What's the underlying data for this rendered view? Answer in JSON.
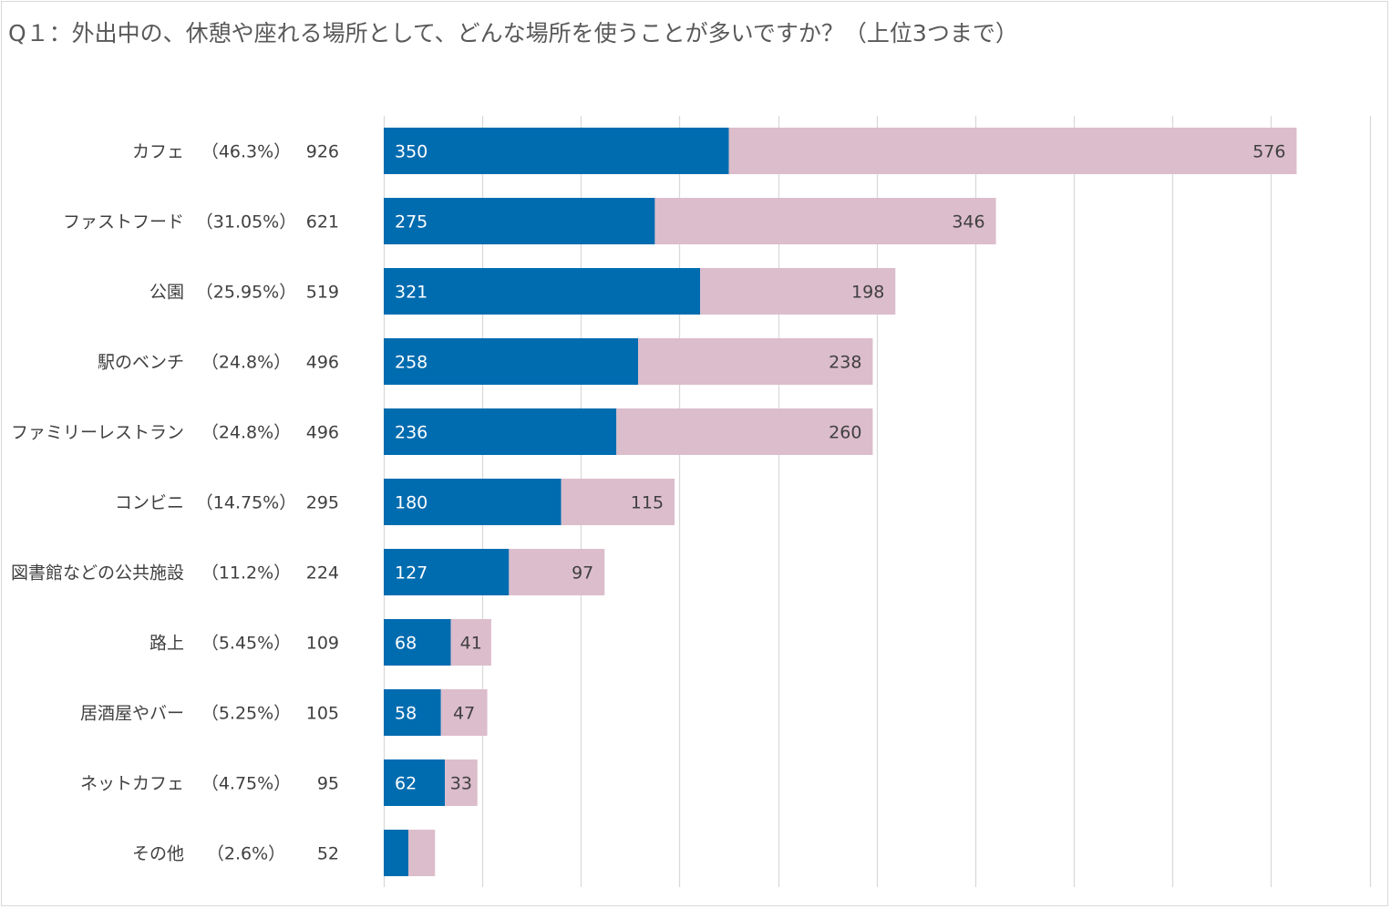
{
  "chart_data": {
    "type": "bar",
    "orientation": "horizontal",
    "stacked": true,
    "title": "Q１：外出中の、休憩や座れる場所として、どんな場所を使うことが多いですか？（上位3つまで）",
    "categories": [
      "カフェ",
      "ファストフード",
      "公園",
      "駅のベンチ",
      "ファミリーレストラン",
      "コンビニ",
      "図書館などの公共施設",
      "路上",
      "居酒屋やバー",
      "ネットカフェ",
      "その他"
    ],
    "percent_labels": [
      "（46.3%）",
      "（31.05%）",
      "（25.95%）",
      "（24.8%）",
      "（24.8%）",
      "（14.75%）",
      "（11.2%）",
      "（5.45%）",
      "（5.25%）",
      "（4.75%）",
      "（2.6%）"
    ],
    "totals": [
      926,
      621,
      519,
      496,
      496,
      295,
      224,
      109,
      105,
      95,
      52
    ],
    "series": [
      {
        "name": "series-1",
        "color": "#006cb0",
        "values": [
          350,
          275,
          321,
          258,
          236,
          180,
          127,
          68,
          58,
          62,
          25
        ],
        "show_labels": [
          true,
          true,
          true,
          true,
          true,
          true,
          true,
          true,
          true,
          true,
          false
        ]
      },
      {
        "name": "series-2",
        "color": "#dcbdcb",
        "values": [
          576,
          346,
          198,
          238,
          260,
          115,
          97,
          41,
          47,
          33,
          27
        ],
        "show_labels": [
          true,
          true,
          true,
          true,
          true,
          true,
          true,
          true,
          true,
          true,
          false
        ]
      }
    ],
    "xlim": [
      0,
      1000
    ],
    "grid_step": 100,
    "grid": true,
    "legend": "none"
  }
}
